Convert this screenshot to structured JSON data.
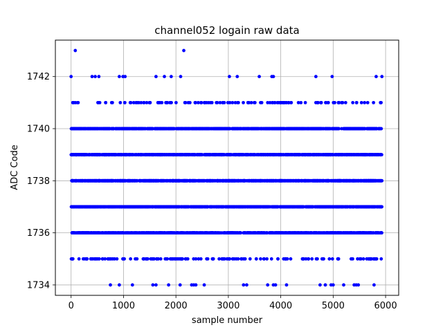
{
  "chart_data": {
    "type": "scatter",
    "title": "channel052 logain raw data",
    "xlabel": "sample number",
    "ylabel": "ADC Code",
    "xlim": [
      -300,
      6250
    ],
    "ylim": [
      1733.6,
      1743.4
    ],
    "xticks": [
      0,
      1000,
      2000,
      3000,
      4000,
      5000,
      6000
    ],
    "xtick_labels": [
      "0",
      "1000",
      "2000",
      "3000",
      "4000",
      "5000",
      "6000"
    ],
    "yticks": [
      1734,
      1736,
      1738,
      1740,
      1742
    ],
    "ytick_labels": [
      "1734",
      "1736",
      "1738",
      "1740",
      "1742"
    ],
    "grid": true,
    "marker_color": "#0000ff",
    "series": [
      {
        "points": [
          [
            80,
            1743
          ],
          [
            2150,
            1743
          ],
          [
            0,
            1742
          ],
          [
            400,
            1742
          ],
          [
            460,
            1742
          ],
          [
            530,
            1742
          ],
          [
            920,
            1742
          ],
          [
            990,
            1742
          ],
          [
            1030,
            1742
          ],
          [
            1620,
            1742
          ],
          [
            1780,
            1742
          ],
          [
            1910,
            1742
          ],
          [
            2090,
            1742
          ],
          [
            3020,
            1742
          ],
          [
            3170,
            1742
          ],
          [
            3590,
            1742
          ],
          [
            3830,
            1742
          ],
          [
            3860,
            1742
          ],
          [
            4670,
            1742
          ],
          [
            4980,
            1742
          ],
          [
            5820,
            1742
          ],
          [
            5930,
            1742
          ],
          [
            750,
            1734
          ],
          [
            920,
            1734
          ],
          [
            1170,
            1734
          ],
          [
            1560,
            1734
          ],
          [
            1620,
            1734
          ],
          [
            1860,
            1734
          ],
          [
            2080,
            1734
          ],
          [
            2300,
            1734
          ],
          [
            2340,
            1734
          ],
          [
            2380,
            1734
          ],
          [
            2540,
            1734
          ],
          [
            3290,
            1734
          ],
          [
            3350,
            1734
          ],
          [
            3750,
            1734
          ],
          [
            3860,
            1734
          ],
          [
            3900,
            1734
          ],
          [
            4110,
            1734
          ],
          [
            4750,
            1734
          ],
          [
            4850,
            1734
          ],
          [
            4960,
            1734
          ],
          [
            5000,
            1734
          ],
          [
            5200,
            1734
          ],
          [
            5400,
            1734
          ],
          [
            5440,
            1734
          ],
          [
            5480,
            1734
          ],
          [
            5780,
            1734
          ]
        ],
        "dense_rows": [
          {
            "y": 1741,
            "count": 140
          },
          {
            "y": 1740,
            "count": 900
          },
          {
            "y": 1739,
            "count": 1100
          },
          {
            "y": 1738,
            "count": 1200
          },
          {
            "y": 1737,
            "count": 1150
          },
          {
            "y": 1736,
            "count": 900
          },
          {
            "y": 1735,
            "count": 160
          }
        ],
        "x_range": [
          0,
          5930
        ]
      }
    ]
  }
}
